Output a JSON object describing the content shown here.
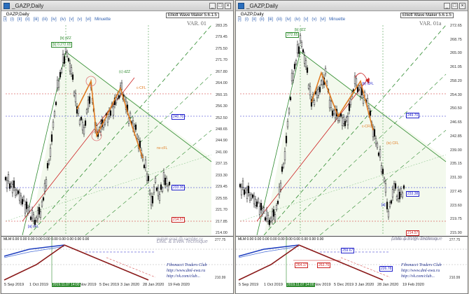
{
  "windows": [
    {
      "title": "_GAZP,Daily",
      "header": "_GAZP,Daily",
      "timeframes": [
        "[i]",
        "(i)",
        "[ii]",
        "(ii)",
        "[iii]",
        "(iii)",
        "[iv]",
        "(iv)",
        "[v]",
        "(v)",
        "[vi]",
        "Minuette"
      ],
      "ewm": "Elliott Wave Maker 5.6.1.5",
      "var": "VAR. 01",
      "prices": [
        "283.25",
        "279.45",
        "275.50",
        "271.70",
        "267.80",
        "264.00",
        "260.15",
        "256.30",
        "252.50",
        "248.65",
        "244.90",
        "241.00",
        "237.15",
        "233.30",
        "229.45",
        "225.55",
        "221.70",
        "217.85",
        "214.00"
      ],
      "x_labels": [
        "5 Sep 2019",
        "1 Oct 2019",
        "Nov 2019",
        "5 Dec 2019",
        "3 Jan 2020",
        "28 Jan 2020",
        "19 Feb 2020"
      ],
      "date_flag": "2019.11.07 14:00",
      "sub_header": "MLM 0.00 0.00 0.00 0.00 0.00 0.00 0.00 0.00 0.00 0.00",
      "sub_prices": [
        "277.75",
        "210.99"
      ],
      "watermark1": "DML & EWA Technique",
      "watermark2": "putnik-post @ rambler.ru",
      "club1": "Fibonacci Traders Club",
      "club2": "http://www.dml-ewa.ru",
      "club3": "http://vk.com/club...",
      "labels": {
        "top": "[b] 0.272.65",
        "top_lbl": "[b] dZZ",
        "mid": "(c) dZZ",
        "cfl": "c-CFL",
        "b_cfl": "(b)",
        "right_fl": "nv-cFL",
        "blue_right": "240.70",
        "last": "233.30",
        "red_bottom": "214.57",
        "a_lbl": "[a] cFL"
      }
    },
    {
      "title": "_GAZP,Daily",
      "header": "_GAZP,Daily",
      "timeframes": [
        "[i]",
        "(i)",
        "[ii]",
        "(ii)",
        "[iii]",
        "(iii)",
        "[iv]",
        "(iv)",
        "[v]",
        "(v)",
        "[vi]",
        "Minuette"
      ],
      "ewm": "Elliott Wave Maker 5.6.1.5",
      "var": "VAR. 01a",
      "prices": [
        "272.65",
        "268.75",
        "265.00",
        "261.05",
        "258.20",
        "254.30",
        "250.50",
        "246.65",
        "242.85",
        "239.00",
        "235.15",
        "231.30",
        "227.45",
        "223.60",
        "219.75",
        "215.90"
      ],
      "x_labels": [
        "5 Sep 2019",
        "1 Oct 2019",
        "Nov 2019",
        "5 Dec 2019",
        "3 Jan 2020",
        "28 Jan 2020",
        "19 Feb 2020"
      ],
      "date_flag": "2019.11.07 14:00",
      "sub_header": "MLM 0.00 0.00 0.00 0.00 0.00 0.00 0.00 0.00 0.00 0.00",
      "sub_prices": [
        "277.75",
        "210.99"
      ],
      "watermark1": "DML & EWA Technique",
      "watermark2": "putnik-post @ rambler.ru",
      "club1": "Fibonacci Traders Club",
      "club2": "http://www.dml-ewa.ru",
      "club3": "http://vk.com/club...",
      "labels": {
        "top": "272.65",
        "top_lbl": "[b] dZZ",
        "mid": "(b) CFL",
        "cfl": "c-CFL",
        "right_fl": "(iv) CFL",
        "blue_right": "249.70",
        "last": "233.38",
        "red_bottom": "214.57",
        "a_lbl": "[a]",
        "box1": "264.17",
        "box2": "263.76",
        "box3": "259.67",
        "box4": "226.78"
      }
    }
  ],
  "colors": {
    "candle_up": "#000000",
    "candle_down": "#000000",
    "green_channel": "#2d8a2d",
    "orange_wave": "#e07a1f",
    "red": "#cc2222",
    "blue": "#2222cc",
    "mlm_blue": "#1f3fbf",
    "mlm_red": "#8a1a1a"
  }
}
